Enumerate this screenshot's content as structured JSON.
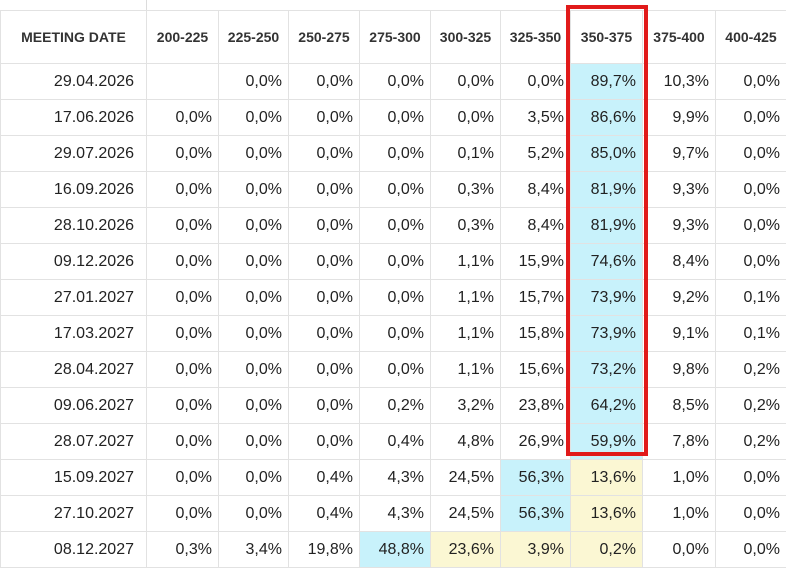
{
  "table": {
    "headers": [
      "MEETING DATE",
      "200-225",
      "225-250",
      "250-275",
      "275-300",
      "300-325",
      "325-350",
      "350-375",
      "375-400",
      "400-425"
    ],
    "rows": [
      {
        "cells": [
          "29.04.2026",
          "",
          "0,0%",
          "0,0%",
          "0,0%",
          "0,0%",
          "0,0%",
          "89,7%",
          "10,3%",
          "0,0%"
        ],
        "hl": {
          "7": "cyan"
        }
      },
      {
        "cells": [
          "17.06.2026",
          "0,0%",
          "0,0%",
          "0,0%",
          "0,0%",
          "0,0%",
          "3,5%",
          "86,6%",
          "9,9%",
          "0,0%"
        ],
        "hl": {
          "7": "cyan"
        }
      },
      {
        "cells": [
          "29.07.2026",
          "0,0%",
          "0,0%",
          "0,0%",
          "0,0%",
          "0,1%",
          "5,2%",
          "85,0%",
          "9,7%",
          "0,0%"
        ],
        "hl": {
          "7": "cyan"
        }
      },
      {
        "cells": [
          "16.09.2026",
          "0,0%",
          "0,0%",
          "0,0%",
          "0,0%",
          "0,3%",
          "8,4%",
          "81,9%",
          "9,3%",
          "0,0%"
        ],
        "hl": {
          "7": "cyan"
        }
      },
      {
        "cells": [
          "28.10.2026",
          "0,0%",
          "0,0%",
          "0,0%",
          "0,0%",
          "0,3%",
          "8,4%",
          "81,9%",
          "9,3%",
          "0,0%"
        ],
        "hl": {
          "7": "cyan"
        }
      },
      {
        "cells": [
          "09.12.2026",
          "0,0%",
          "0,0%",
          "0,0%",
          "0,0%",
          "1,1%",
          "15,9%",
          "74,6%",
          "8,4%",
          "0,0%"
        ],
        "hl": {
          "7": "cyan"
        }
      },
      {
        "cells": [
          "27.01.2027",
          "0,0%",
          "0,0%",
          "0,0%",
          "0,0%",
          "1,1%",
          "15,7%",
          "73,9%",
          "9,2%",
          "0,1%"
        ],
        "hl": {
          "7": "cyan"
        }
      },
      {
        "cells": [
          "17.03.2027",
          "0,0%",
          "0,0%",
          "0,0%",
          "0,0%",
          "1,1%",
          "15,8%",
          "73,9%",
          "9,1%",
          "0,1%"
        ],
        "hl": {
          "7": "cyan"
        }
      },
      {
        "cells": [
          "28.04.2027",
          "0,0%",
          "0,0%",
          "0,0%",
          "0,0%",
          "1,1%",
          "15,6%",
          "73,2%",
          "9,8%",
          "0,2%"
        ],
        "hl": {
          "7": "cyan"
        }
      },
      {
        "cells": [
          "09.06.2027",
          "0,0%",
          "0,0%",
          "0,0%",
          "0,2%",
          "3,2%",
          "23,8%",
          "64,2%",
          "8,5%",
          "0,2%"
        ],
        "hl": {
          "7": "cyan"
        }
      },
      {
        "cells": [
          "28.07.2027",
          "0,0%",
          "0,0%",
          "0,0%",
          "0,4%",
          "4,8%",
          "26,9%",
          "59,9%",
          "7,8%",
          "0,2%"
        ],
        "hl": {
          "7": "cyan"
        }
      },
      {
        "cells": [
          "15.09.2027",
          "0,0%",
          "0,0%",
          "0,4%",
          "4,3%",
          "24,5%",
          "56,3%",
          "13,6%",
          "1,0%",
          "0,0%"
        ],
        "hl": {
          "6": "cyan",
          "7": "yellow"
        }
      },
      {
        "cells": [
          "27.10.2027",
          "0,0%",
          "0,0%",
          "0,4%",
          "4,3%",
          "24,5%",
          "56,3%",
          "13,6%",
          "1,0%",
          "0,0%"
        ],
        "hl": {
          "6": "cyan",
          "7": "yellow"
        }
      },
      {
        "cells": [
          "08.12.2027",
          "0,3%",
          "3,4%",
          "19,8%",
          "48,8%",
          "23,6%",
          "3,9%",
          "0,2%",
          "0,0%",
          "0,0%"
        ],
        "hl": {
          "4": "cyan",
          "5": "yellow",
          "6": "yellow",
          "7": "yellow"
        }
      }
    ]
  },
  "colors": {
    "highlight_border": "#e11a1a",
    "cyan": "#c8f2fb",
    "yellow": "#fbf7d3"
  }
}
